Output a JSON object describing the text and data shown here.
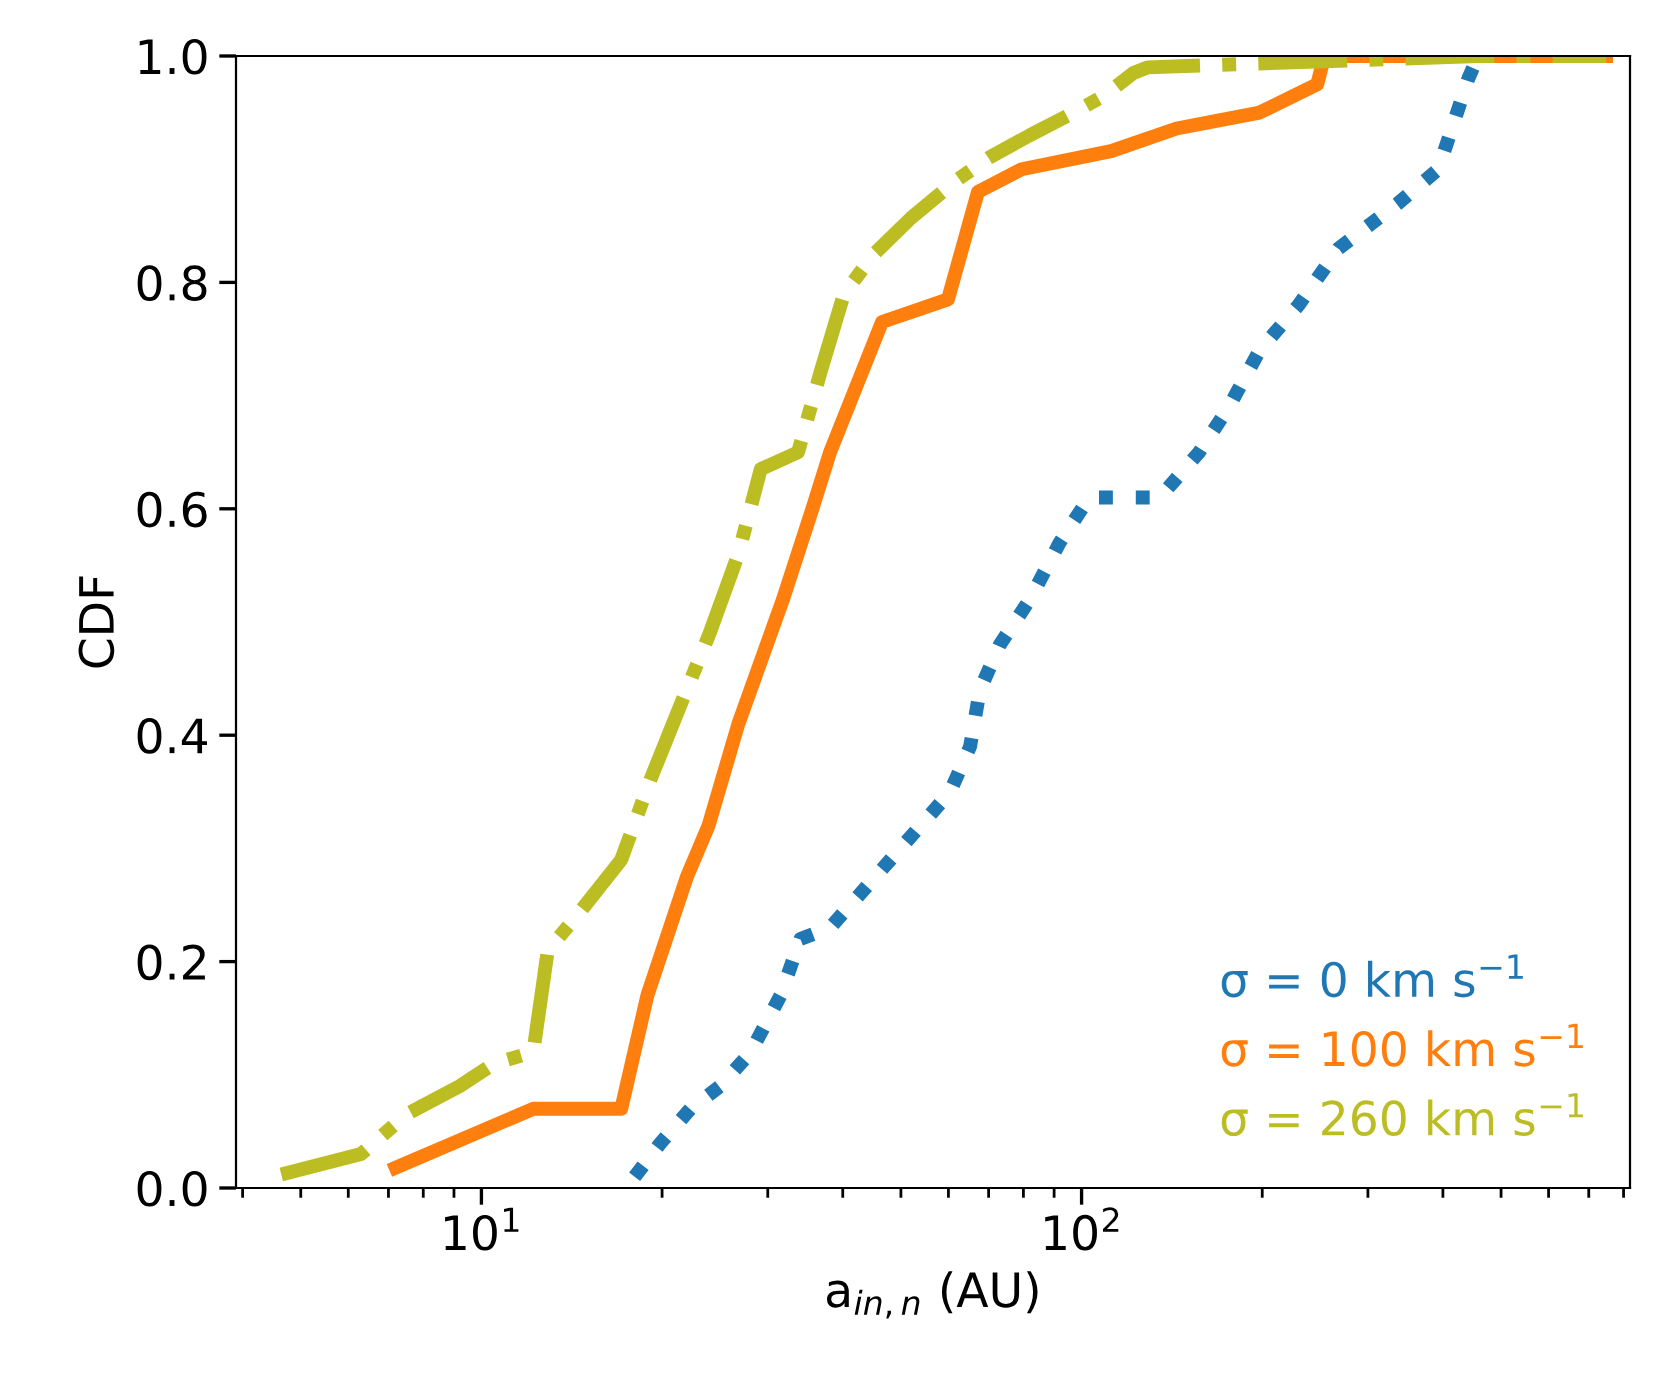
{
  "chart_data": {
    "type": "line",
    "xlabel": "a$_{in,n}$ (AU)",
    "ylabel": "CDF",
    "log": "x",
    "xlim": [
      3.9,
      820
    ],
    "xticks": [
      {
        "value": 10,
        "label": "10$^{1}$"
      },
      {
        "value": 100,
        "label": "10$^{2}$"
      }
    ],
    "ylim": [
      0,
      1
    ],
    "yticks": [
      {
        "value": 0,
        "label": "0.0"
      },
      {
        "value": 0.2,
        "label": "0.2"
      },
      {
        "value": 0.4,
        "label": "0.4"
      },
      {
        "value": 0.6,
        "label": "0.6"
      },
      {
        "value": 0.8,
        "label": "0.8"
      },
      {
        "value": 1,
        "label": "1.0"
      }
    ],
    "grid": false,
    "legend": "bottom right",
    "series": [
      {
        "name": "σ = 0 km s$^{−1}$",
        "color": "#1f77b4",
        "line_style": "dotted",
        "x": [
          18,
          19.9,
          22.3,
          25,
          28.1,
          31.5,
          34,
          38.1,
          42.8,
          49.9,
          56,
          60.4,
          65.2,
          67.7,
          73.1,
          82,
          91.9,
          103,
          135,
          157,
          176,
          198,
          230,
          268,
          337,
          393,
          441,
          458
        ],
        "values": [
          0.01,
          0.04,
          0.07,
          0.09,
          0.12,
          0.17,
          0.22,
          0.23,
          0.26,
          0.3,
          0.33,
          0.35,
          0.39,
          0.44,
          0.48,
          0.52,
          0.57,
          0.61,
          0.61,
          0.65,
          0.69,
          0.74,
          0.78,
          0.83,
          0.87,
          0.9,
          0.98,
          1.0
        ]
      },
      {
        "name": "σ = 100 km s$^{−1}$",
        "color": "#ff7f0e",
        "line_style": "solid",
        "x": [
          7.2,
          12.2,
          17.1,
          18.9,
          22,
          23.9,
          26.8,
          31.8,
          35.6,
          38.1,
          46.5,
          59.9,
          67.2,
          79.5,
          112,
          144,
          198,
          247,
          254,
          748
        ],
        "values": [
          0.018,
          0.07,
          0.07,
          0.17,
          0.275,
          0.32,
          0.41,
          0.52,
          0.6,
          0.65,
          0.765,
          0.785,
          0.88,
          0.9,
          0.916,
          0.936,
          0.95,
          0.975,
          1.0,
          1.0
        ]
      },
      {
        "name": "σ = 260 km s$^{−1}$",
        "color": "#bcbd22",
        "line_style": "dashdot",
        "x": [
          4.64,
          6.3,
          7.5,
          9.2,
          10.5,
          12.2,
          12.9,
          14.4,
          17.1,
          19.1,
          21.4,
          24,
          26.8,
          29.2,
          33.7,
          36.7,
          40.2,
          45.1,
          52,
          61.8,
          70,
          82,
          97,
          109,
          122,
          129,
          458,
          748
        ],
        "values": [
          0.012,
          0.03,
          0.065,
          0.09,
          0.11,
          0.12,
          0.21,
          0.24,
          0.29,
          0.36,
          0.425,
          0.49,
          0.56,
          0.635,
          0.65,
          0.72,
          0.79,
          0.825,
          0.857,
          0.89,
          0.91,
          0.93,
          0.95,
          0.965,
          0.985,
          0.99,
          1.0,
          1.0
        ]
      }
    ]
  }
}
